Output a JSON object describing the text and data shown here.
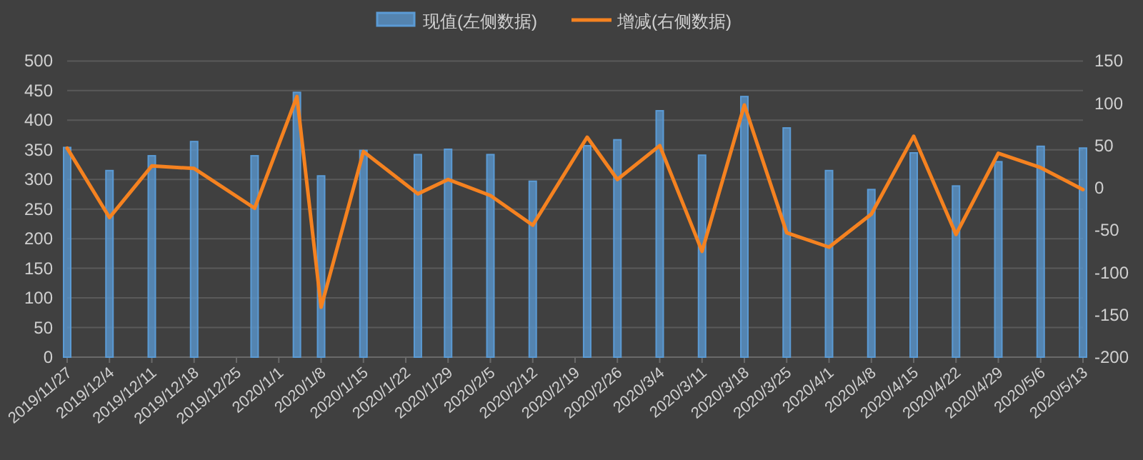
{
  "chart_data": {
    "type": "bar",
    "legend": "top",
    "grid": "y",
    "x": [
      "2019-11-27",
      "2019-12-04",
      "2019-12-11",
      "2019-12-18",
      "2019-12-28",
      "2020-01-04",
      "2020-01-08",
      "2020-01-15",
      "2020-01-24",
      "2020-01-29",
      "2020-02-05",
      "2020-02-12",
      "2020-02-21",
      "2020-02-26",
      "2020-03-04",
      "2020-03-11",
      "2020-03-18",
      "2020-03-25",
      "2020-04-01",
      "2020-04-08",
      "2020-04-15",
      "2020-04-22",
      "2020-04-29",
      "2020-05-06",
      "2020-05-13"
    ],
    "xlim": [
      "2019-11-27",
      "2020-05-13"
    ],
    "xticks": [
      {
        "value": "2019-11-27",
        "label": "2019/11/27"
      },
      {
        "value": "2019-12-04",
        "label": "2019/12/4"
      },
      {
        "value": "2019-12-11",
        "label": "2019/12/11"
      },
      {
        "value": "2019-12-18",
        "label": "2019/12/18"
      },
      {
        "value": "2019-12-25",
        "label": "2019/12/25"
      },
      {
        "value": "2020-01-01",
        "label": "2020/1/1"
      },
      {
        "value": "2020-01-08",
        "label": "2020/1/8"
      },
      {
        "value": "2020-01-15",
        "label": "2020/1/15"
      },
      {
        "value": "2020-01-22",
        "label": "2020/1/22"
      },
      {
        "value": "2020-01-29",
        "label": "2020/1/29"
      },
      {
        "value": "2020-02-05",
        "label": "2020/2/5"
      },
      {
        "value": "2020-02-12",
        "label": "2020/2/12"
      },
      {
        "value": "2020-02-19",
        "label": "2020/2/19"
      },
      {
        "value": "2020-02-26",
        "label": "2020/2/26"
      },
      {
        "value": "2020-03-04",
        "label": "2020/3/4"
      },
      {
        "value": "2020-03-11",
        "label": "2020/3/11"
      },
      {
        "value": "2020-03-18",
        "label": "2020/3/18"
      },
      {
        "value": "2020-03-25",
        "label": "2020/3/25"
      },
      {
        "value": "2020-04-01",
        "label": "2020/4/1"
      },
      {
        "value": "2020-04-08",
        "label": "2020/4/8"
      },
      {
        "value": "2020-04-15",
        "label": "2020/4/15"
      },
      {
        "value": "2020-04-22",
        "label": "2020/4/22"
      },
      {
        "value": "2020-04-29",
        "label": "2020/4/29"
      },
      {
        "value": "2020-05-06",
        "label": "2020/5/6"
      },
      {
        "value": "2020-05-13",
        "label": "2020/5/13"
      }
    ],
    "ylim": [
      0,
      500
    ],
    "yticks": [
      0,
      50,
      100,
      150,
      200,
      250,
      300,
      350,
      400,
      450,
      500
    ],
    "y2lim": [
      -200,
      150
    ],
    "y2ticks": [
      -200,
      -150,
      -100,
      -50,
      0,
      50,
      100,
      150
    ],
    "series": [
      {
        "name": "现值(左侧数据)",
        "color": "#5b9bd5",
        "values": [
          354,
          315,
          340,
          364,
          340,
          447,
          306,
          349,
          342,
          351,
          342,
          297,
          357,
          367,
          416,
          341,
          440,
          387,
          315,
          283,
          345,
          289,
          330,
          356,
          353
        ]
      },
      {
        "name": "增减(右侧数据)",
        "type": "line",
        "axis": "y2",
        "color": "#f58220",
        "values": [
          47,
          -35,
          26,
          23,
          -24,
          108,
          -141,
          43,
          -7,
          10,
          -9,
          -44,
          60,
          10,
          50,
          -75,
          98,
          -53,
          -70,
          -31,
          61,
          -55,
          41,
          24,
          -2
        ]
      }
    ]
  }
}
